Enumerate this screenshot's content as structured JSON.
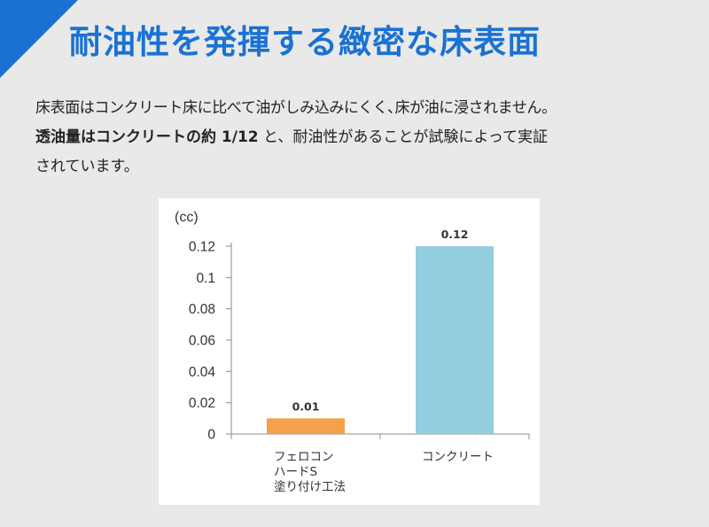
{
  "header": {
    "title": "耐油性を発揮する緻密な床表面",
    "accent_color": "#1a72d2"
  },
  "description": {
    "line1": "床表面はコンクリート床に比べて油がしみ込みにくく､床が油に浸されません。",
    "line2_bold": "透油量はコンクリートの約 1/12",
    "line2_rest": " と、耐油性があることが試験によって実証",
    "line3": "されています。"
  },
  "chart_data": {
    "type": "bar",
    "title": "",
    "xlabel": "",
    "ylabel": "(cc)",
    "ylim": [
      0,
      0.12
    ],
    "yticks": [
      "0",
      "0.02",
      "0.04",
      "0.06",
      "0.08",
      "0.1",
      "0.12"
    ],
    "categories": [
      [
        "フェロコン",
        "ハードS",
        "塗り付け工法"
      ],
      [
        "コンクリート"
      ]
    ],
    "values": [
      0.01,
      0.12
    ],
    "data_labels": [
      "0.01",
      "0.12"
    ],
    "colors": [
      "#f5a04b",
      "#92cde0"
    ],
    "grid": false,
    "legend": "none"
  }
}
